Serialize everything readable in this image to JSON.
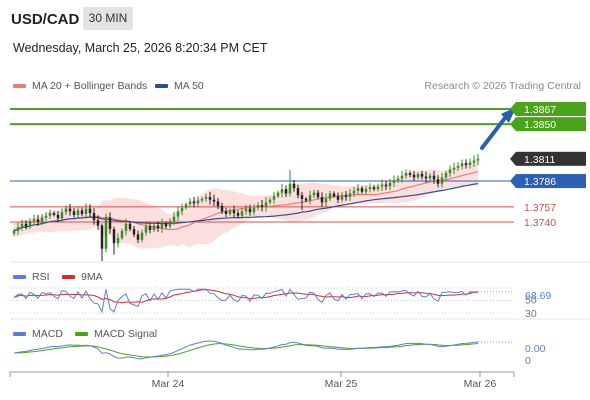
{
  "header": {
    "symbol": "USD/CAD",
    "interval": "30 MIN",
    "datetime": "Wednesday, March 25, 2026 8:20:34 PM CET",
    "research": "Research © 2026 Trading Central"
  },
  "colors": {
    "resistance": "#4aa31a",
    "support": "#e24a4a",
    "pivot": "#2d5fb3",
    "last_price": "#333333",
    "ma20": "#f07a7a",
    "ma50": "#2d4f8a",
    "bollinger_fill": "#fbdada",
    "rsi": "#5b7fd8",
    "rsi_ma": "#d92b2b",
    "macd": "#5b7fd8",
    "macd_signal": "#4aa31a",
    "arrow": "#2d5fa8"
  },
  "chart_data": [
    {
      "type": "candlestick",
      "legend": [
        {
          "label": "MA 20 + Bollinger Bands",
          "color": "#f07a7a"
        },
        {
          "label": "MA 50",
          "color": "#2d4f8a"
        }
      ],
      "x_ticks": [
        "Mar 24",
        "Mar 25",
        "Mar 26"
      ],
      "ylim": [
        1.3695,
        1.3885
      ],
      "levels": [
        {
          "value": 1.3867,
          "label": "1.3867",
          "kind": "resistance"
        },
        {
          "value": 1.385,
          "label": "1.3850",
          "kind": "resistance"
        },
        {
          "value": 1.3811,
          "label": "1.3811",
          "kind": "last"
        },
        {
          "value": 1.3786,
          "label": "1.3786",
          "kind": "pivot"
        },
        {
          "value": 1.3757,
          "label": "1.3757",
          "kind": "support"
        },
        {
          "value": 1.374,
          "label": "1.3740",
          "kind": "support"
        }
      ],
      "close": [
        1.373,
        1.3734,
        1.3738,
        1.3735,
        1.3741,
        1.3743,
        1.374,
        1.3745,
        1.3747,
        1.375,
        1.3748,
        1.3744,
        1.3751,
        1.3755,
        1.3752,
        1.3748,
        1.3753,
        1.3749,
        1.3755,
        1.375,
        1.3742,
        1.3736,
        1.371,
        1.3745,
        1.3732,
        1.3716,
        1.3722,
        1.373,
        1.3738,
        1.3732,
        1.3726,
        1.372,
        1.3728,
        1.3735,
        1.3731,
        1.3736,
        1.3733,
        1.3738,
        1.3735,
        1.3741,
        1.3746,
        1.3752,
        1.3756,
        1.376,
        1.3763,
        1.3761,
        1.3764,
        1.3766,
        1.3768,
        1.3765,
        1.3763,
        1.3758,
        1.3752,
        1.3749,
        1.3753,
        1.375,
        1.3747,
        1.3752,
        1.3755,
        1.3751,
        1.3756,
        1.3759,
        1.3757,
        1.3762,
        1.3765,
        1.3769,
        1.3773,
        1.3777,
        1.3772,
        1.3783,
        1.3778,
        1.377,
        1.3766,
        1.3764,
        1.377,
        1.3773,
        1.3768,
        1.3762,
        1.3766,
        1.3772,
        1.3769,
        1.3765,
        1.377,
        1.3768,
        1.3772,
        1.3775,
        1.3778,
        1.3774,
        1.3777,
        1.3779,
        1.3777,
        1.378,
        1.3782,
        1.378,
        1.3784,
        1.3787,
        1.3789,
        1.3792,
        1.3795,
        1.3793,
        1.379,
        1.3794,
        1.3791,
        1.3789,
        1.3792,
        1.3788,
        1.3783,
        1.379,
        1.3795,
        1.3799,
        1.3801,
        1.3803,
        1.3806,
        1.3804,
        1.3807,
        1.3809,
        1.3811
      ],
      "rsi_scale": [
        30,
        70
      ],
      "rsi_ticks": [
        "50",
        "30"
      ],
      "rsi_value": "68.69",
      "rsi_legend": [
        {
          "label": "RSI",
          "color": "#5b7fd8"
        },
        {
          "label": "9MA",
          "color": "#d92b2b"
        }
      ],
      "macd_value": "0.00",
      "macd_ticks": [
        "0"
      ],
      "macd_legend": [
        {
          "label": "MACD",
          "color": "#5b7fd8"
        },
        {
          "label": "MACD Signal",
          "color": "#4aa31a"
        }
      ]
    }
  ]
}
